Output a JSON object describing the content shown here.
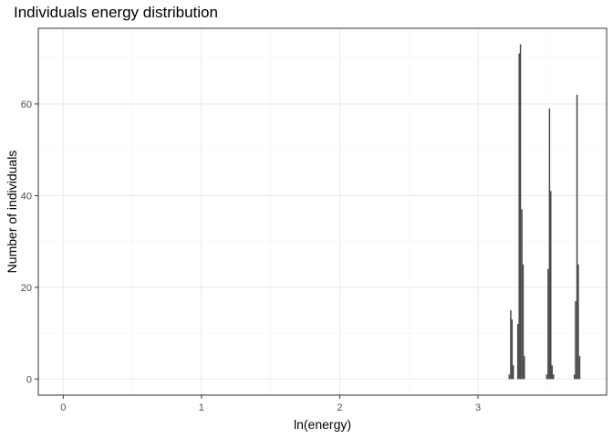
{
  "chart_data": {
    "type": "bar",
    "title": "Individuals energy distribution",
    "xlabel": "ln(energy)",
    "ylabel": "Number of individuals",
    "xlim": [
      -0.18,
      3.93
    ],
    "ylim": [
      -3.5,
      76.5
    ],
    "x_ticks": [
      0,
      1,
      2,
      3
    ],
    "y_ticks": [
      0,
      20,
      40,
      60
    ],
    "grid": true,
    "bin_width": 0.01,
    "bars": [
      {
        "x": 3.226,
        "y": 1
      },
      {
        "x": 3.237,
        "y": 15
      },
      {
        "x": 3.246,
        "y": 13
      },
      {
        "x": 3.255,
        "y": 3
      },
      {
        "x": 3.288,
        "y": 12
      },
      {
        "x": 3.298,
        "y": 71
      },
      {
        "x": 3.307,
        "y": 73
      },
      {
        "x": 3.317,
        "y": 37
      },
      {
        "x": 3.326,
        "y": 25
      },
      {
        "x": 3.335,
        "y": 5
      },
      {
        "x": 3.497,
        "y": 1
      },
      {
        "x": 3.507,
        "y": 24
      },
      {
        "x": 3.517,
        "y": 59
      },
      {
        "x": 3.526,
        "y": 41
      },
      {
        "x": 3.536,
        "y": 3
      },
      {
        "x": 3.546,
        "y": 1
      },
      {
        "x": 3.697,
        "y": 1
      },
      {
        "x": 3.706,
        "y": 17
      },
      {
        "x": 3.716,
        "y": 62
      },
      {
        "x": 3.725,
        "y": 25
      },
      {
        "x": 3.735,
        "y": 5
      }
    ],
    "colors": {
      "bar": "#4a4a4a",
      "grid_major": "#ebebeb",
      "grid_minor": "#f4f4f4",
      "panel_border": "#333333",
      "tick_label": "#4d4d4d"
    }
  }
}
